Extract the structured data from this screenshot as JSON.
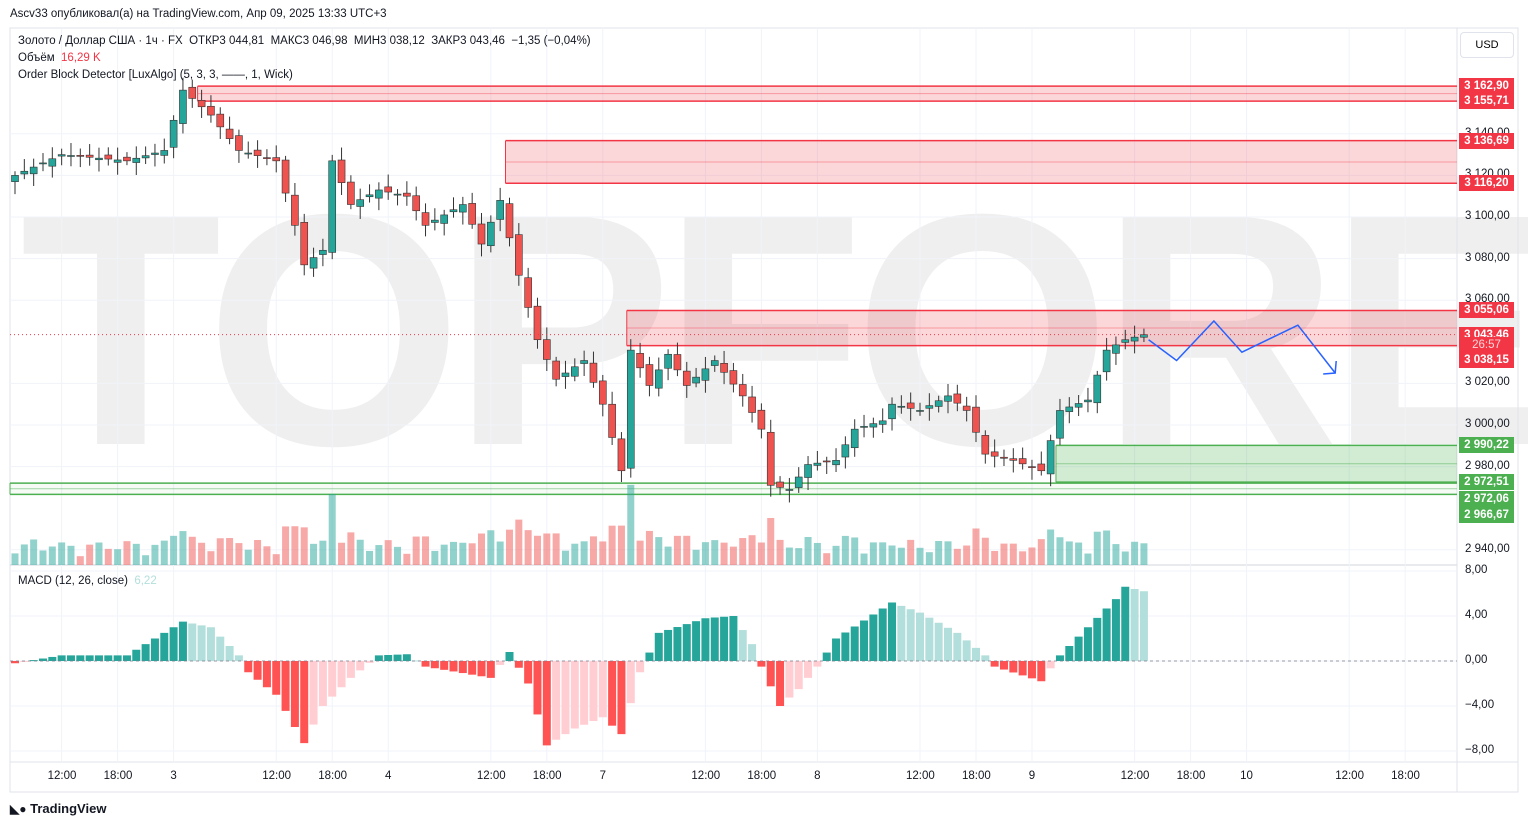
{
  "header": {
    "published": "Ascv33 опубликовал(а) на TradingView.com, Апр 09, 2025 13:33 UTC+3"
  },
  "legend": {
    "symbol": "Золото / Доллар США · 1ч · FX",
    "open": "ОТКР3 044,81",
    "high": "МАКС3 046,98",
    "low": "МИН3 038,12",
    "close": "ЗАКР3 043,46",
    "change": "−1,35 (−0,04%)",
    "volume_label": "Объём",
    "volume_value": "16,29 K",
    "indicator": "Order Block Detector [LuxAlgo] (5, 3, 3, ——, 1, Wick)",
    "macd_label": "MACD (12, 26, close)",
    "macd_value": "6,22"
  },
  "currency": "USD",
  "watermark": "TOPFOREX.COM",
  "footer": {
    "brand": "TradingView"
  },
  "colors": {
    "up": "#26a69a",
    "down": "#ef5350",
    "bear_zone": "#f23645",
    "bull_zone": "#4caf50",
    "projection": "#2962ff"
  },
  "chart_data": {
    "type": "candlestick",
    "price_ticks": [
      "3 140,00",
      "3 120,00",
      "3 100,00",
      "3 080,00",
      "3 060,00",
      "3 020,00",
      "3 000,00",
      "2 980,00",
      "2 940,00"
    ],
    "price_tick_values": [
      3140,
      3120,
      3100,
      3080,
      3060,
      3020,
      3000,
      2980,
      2940
    ],
    "price_tags": [
      {
        "label": "3 162,90",
        "value": 3162.9,
        "kind": "bear"
      },
      {
        "label": "3 155,71",
        "value": 3155.71,
        "kind": "bear"
      },
      {
        "label": "3 136,69",
        "value": 3136.69,
        "kind": "bear"
      },
      {
        "label": "3 116,20",
        "value": 3116.2,
        "kind": "bear"
      },
      {
        "label": "3 055,06",
        "value": 3055.06,
        "kind": "bear"
      },
      {
        "label": "3 043,46",
        "value": 3043.46,
        "kind": "last"
      },
      {
        "label": "26:57",
        "value": 3038.6,
        "kind": "timer"
      },
      {
        "label": "3 038,15",
        "value": 3031.2,
        "kind": "bear"
      },
      {
        "label": "2 990,22",
        "value": 2990.22,
        "kind": "bull"
      },
      {
        "label": "2 972,51",
        "value": 2972.51,
        "kind": "bull"
      },
      {
        "label": "2 972,06",
        "value": 2964.6,
        "kind": "bull"
      },
      {
        "label": "2 966,67",
        "value": 2956.5,
        "kind": "bull"
      }
    ],
    "order_blocks": [
      {
        "type": "bearish",
        "top": 3162.9,
        "bottom": 3155.71,
        "start_bar": 20
      },
      {
        "type": "bearish",
        "top": 3136.69,
        "bottom": 3116.2,
        "start_bar": 53
      },
      {
        "type": "bearish",
        "top": 3055.06,
        "bottom": 3038.15,
        "start_bar": 66
      },
      {
        "type": "bullish",
        "top": 2990.22,
        "bottom": 2972.51,
        "start_bar": 112
      },
      {
        "type": "bullish",
        "top": 2972.06,
        "bottom": 2966.67,
        "start_bar": 0
      }
    ],
    "last_price": 3043.46,
    "close_keypoints": [
      [
        0,
        3120
      ],
      [
        5,
        3130
      ],
      [
        12,
        3127
      ],
      [
        16,
        3132
      ],
      [
        18,
        3161
      ],
      [
        21,
        3149
      ],
      [
        24,
        3132
      ],
      [
        28,
        3127
      ],
      [
        30,
        3096
      ],
      [
        31,
        3077
      ],
      [
        33,
        3084
      ],
      [
        34,
        3127
      ],
      [
        36,
        3106
      ],
      [
        39,
        3113
      ],
      [
        42,
        3110
      ],
      [
        44,
        3096
      ],
      [
        48,
        3106
      ],
      [
        50,
        3087
      ],
      [
        52,
        3108
      ],
      [
        54,
        3072
      ],
      [
        56,
        3041
      ],
      [
        58,
        3022
      ],
      [
        61,
        3031
      ],
      [
        63,
        3010
      ],
      [
        65,
        2978
      ],
      [
        66,
        3036
      ],
      [
        68,
        3019
      ],
      [
        70,
        3034
      ],
      [
        72,
        3019
      ],
      [
        75,
        3031
      ],
      [
        78,
        3014
      ],
      [
        80,
        2998
      ],
      [
        81,
        2971
      ],
      [
        83,
        2969
      ],
      [
        85,
        2981
      ],
      [
        88,
        2983
      ],
      [
        90,
        2998
      ],
      [
        93,
        3002
      ],
      [
        94,
        3010
      ],
      [
        97,
        3007
      ],
      [
        100,
        3014
      ],
      [
        102,
        3007
      ],
      [
        104,
        2986
      ],
      [
        107,
        2983
      ],
      [
        110,
        2978
      ],
      [
        112,
        3007
      ],
      [
        115,
        3012
      ],
      [
        117,
        3036
      ],
      [
        119,
        3041
      ],
      [
        121,
        3043.46
      ]
    ],
    "macd_keypoints": [
      [
        0,
        -0.2
      ],
      [
        5,
        0.5
      ],
      [
        12,
        0.5
      ],
      [
        18,
        3.5
      ],
      [
        21,
        3
      ],
      [
        24,
        0.5
      ],
      [
        25,
        -1
      ],
      [
        28,
        -3
      ],
      [
        31,
        -7.3
      ],
      [
        33,
        -4
      ],
      [
        36,
        -1.5
      ],
      [
        39,
        0.5
      ],
      [
        42,
        0.6
      ],
      [
        44,
        -0.5
      ],
      [
        51,
        -1.5
      ],
      [
        53,
        0.8
      ],
      [
        55,
        -2
      ],
      [
        57,
        -7.5
      ],
      [
        60,
        -6
      ],
      [
        63,
        -5
      ],
      [
        65,
        -6.5
      ],
      [
        67,
        -1
      ],
      [
        69,
        2.5
      ],
      [
        74,
        3.8
      ],
      [
        77,
        4
      ],
      [
        79,
        1.5
      ],
      [
        80,
        -0.5
      ],
      [
        82,
        -4
      ],
      [
        84,
        -2.5
      ],
      [
        86,
        -0.5
      ],
      [
        88,
        2
      ],
      [
        94,
        5.2
      ],
      [
        97,
        4.3
      ],
      [
        101,
        2.5
      ],
      [
        104,
        0.5
      ],
      [
        105,
        -0.5
      ],
      [
        110,
        -1.8
      ],
      [
        112,
        0.5
      ],
      [
        115,
        3
      ],
      [
        118,
        5.5
      ],
      [
        119,
        6.6
      ],
      [
        121,
        6.2
      ]
    ],
    "macd_ticks": [
      "8,00",
      "4,00",
      "0,00",
      "−4,00",
      "−8,00"
    ],
    "macd_tick_values": [
      8,
      4,
      0,
      -4,
      -8
    ],
    "time_ticks": [
      "12:00",
      "18:00",
      "3",
      "12:00",
      "18:00",
      "4",
      "12:00",
      "18:00",
      "7",
      "12:00",
      "18:00",
      "8",
      "12:00",
      "18:00",
      "9",
      "12:00",
      "18:00",
      "10",
      "12:00",
      "18:00"
    ],
    "time_tick_bars": [
      5,
      11,
      17,
      28,
      34,
      40,
      51,
      57,
      63,
      74,
      80,
      86,
      97,
      103,
      109,
      120,
      126,
      132,
      143,
      149
    ],
    "projection": [
      [
        121.5,
        3041
      ],
      [
        124.5,
        3031
      ],
      [
        128.5,
        3050
      ],
      [
        131.5,
        3035
      ],
      [
        137.5,
        3048
      ],
      [
        141.5,
        3025
      ]
    ]
  }
}
